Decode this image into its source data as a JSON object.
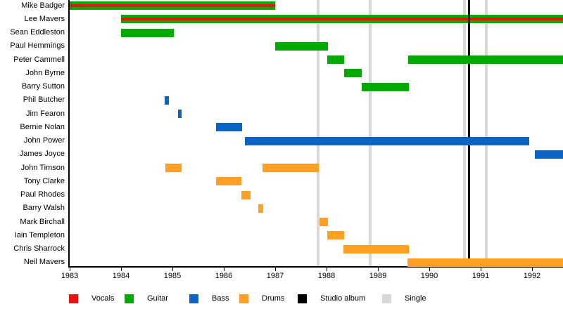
{
  "chart_data": {
    "type": "timeline",
    "description": "Band members timeline (Gantt-style) with instrument roles as colored bars and release events as vertical lines",
    "x_axis": {
      "start": 1983,
      "end": 1992.6,
      "ticks": [
        1983,
        1984,
        1985,
        1986,
        1987,
        1988,
        1989,
        1990,
        1991,
        1992
      ]
    },
    "colors": {
      "vocals": "#ee1111",
      "guitar": "#00ab00",
      "bass": "#0b63c5",
      "drums": "#ffa025",
      "studio_album": "#000000",
      "single": "#d8d8d8"
    },
    "members": [
      {
        "name": "Mike Badger",
        "roles": [
          "vocals",
          "guitar"
        ],
        "segments": [
          [
            1983.0,
            1987.0
          ]
        ]
      },
      {
        "name": "Lee Mavers",
        "roles": [
          "vocals",
          "guitar"
        ],
        "segments": [
          [
            1984.0,
            1992.6
          ]
        ]
      },
      {
        "name": "Sean Eddleston",
        "roles": [
          "guitar"
        ],
        "segments": [
          [
            1984.0,
            1985.03
          ]
        ]
      },
      {
        "name": "Paul Hemmings",
        "roles": [
          "guitar"
        ],
        "segments": [
          [
            1987.0,
            1988.03
          ]
        ]
      },
      {
        "name": "Peter Cammell",
        "roles": [
          "guitar"
        ],
        "segments": [
          [
            1988.01,
            1988.34
          ],
          [
            1989.59,
            1992.6
          ]
        ]
      },
      {
        "name": "John Byrne",
        "roles": [
          "guitar"
        ],
        "segments": [
          [
            1988.34,
            1988.68
          ]
        ]
      },
      {
        "name": "Barry Sutton",
        "roles": [
          "guitar"
        ],
        "segments": [
          [
            1988.68,
            1989.6
          ]
        ]
      },
      {
        "name": "Phil Butcher",
        "roles": [
          "bass"
        ],
        "segments": [
          [
            1984.85,
            1984.93
          ]
        ]
      },
      {
        "name": "Jim Fearon",
        "roles": [
          "bass"
        ],
        "segments": [
          [
            1985.11,
            1985.18
          ]
        ]
      },
      {
        "name": "Bernie Nolan",
        "roles": [
          "bass"
        ],
        "segments": [
          [
            1985.85,
            1986.36
          ]
        ]
      },
      {
        "name": "John Power",
        "roles": [
          "bass"
        ],
        "segments": [
          [
            1986.41,
            1991.95
          ]
        ]
      },
      {
        "name": "James Joyce",
        "roles": [
          "bass"
        ],
        "segments": [
          [
            1992.05,
            1992.6
          ]
        ]
      },
      {
        "name": "John Timson",
        "roles": [
          "drums"
        ],
        "segments": [
          [
            1984.86,
            1985.18
          ],
          [
            1986.75,
            1987.85
          ]
        ]
      },
      {
        "name": "Tony Clarke",
        "roles": [
          "drums"
        ],
        "segments": [
          [
            1985.85,
            1986.34
          ]
        ]
      },
      {
        "name": "Paul Rhodes",
        "roles": [
          "drums"
        ],
        "segments": [
          [
            1986.34,
            1986.52
          ]
        ]
      },
      {
        "name": "Barry Walsh",
        "roles": [
          "drums"
        ],
        "segments": [
          [
            1986.67,
            1986.77
          ]
        ]
      },
      {
        "name": "Mark Birchall",
        "roles": [
          "drums"
        ],
        "segments": [
          [
            1987.86,
            1988.03
          ]
        ]
      },
      {
        "name": "Iain Templeton",
        "roles": [
          "drums"
        ],
        "segments": [
          [
            1988.01,
            1988.34
          ]
        ]
      },
      {
        "name": "Chris Sharrock",
        "roles": [
          "drums"
        ],
        "segments": [
          [
            1988.33,
            1989.6
          ]
        ]
      },
      {
        "name": "Neil Mavers",
        "roles": [
          "drums"
        ],
        "segments": [
          [
            1989.58,
            1992.6
          ]
        ]
      }
    ],
    "events": {
      "singles": [
        1987.84,
        1988.85,
        1990.68,
        1991.11
      ],
      "studio_albums": [
        1990.78
      ]
    },
    "legend": [
      {
        "label": "Vocals",
        "color_key": "vocals"
      },
      {
        "label": "Guitar",
        "color_key": "guitar"
      },
      {
        "label": "Bass",
        "color_key": "bass"
      },
      {
        "label": "Drums",
        "color_key": "drums"
      },
      {
        "label": "Studio album",
        "color_key": "studio_album"
      },
      {
        "label": "Single",
        "color_key": "single"
      }
    ],
    "legend_position": "bottom"
  }
}
